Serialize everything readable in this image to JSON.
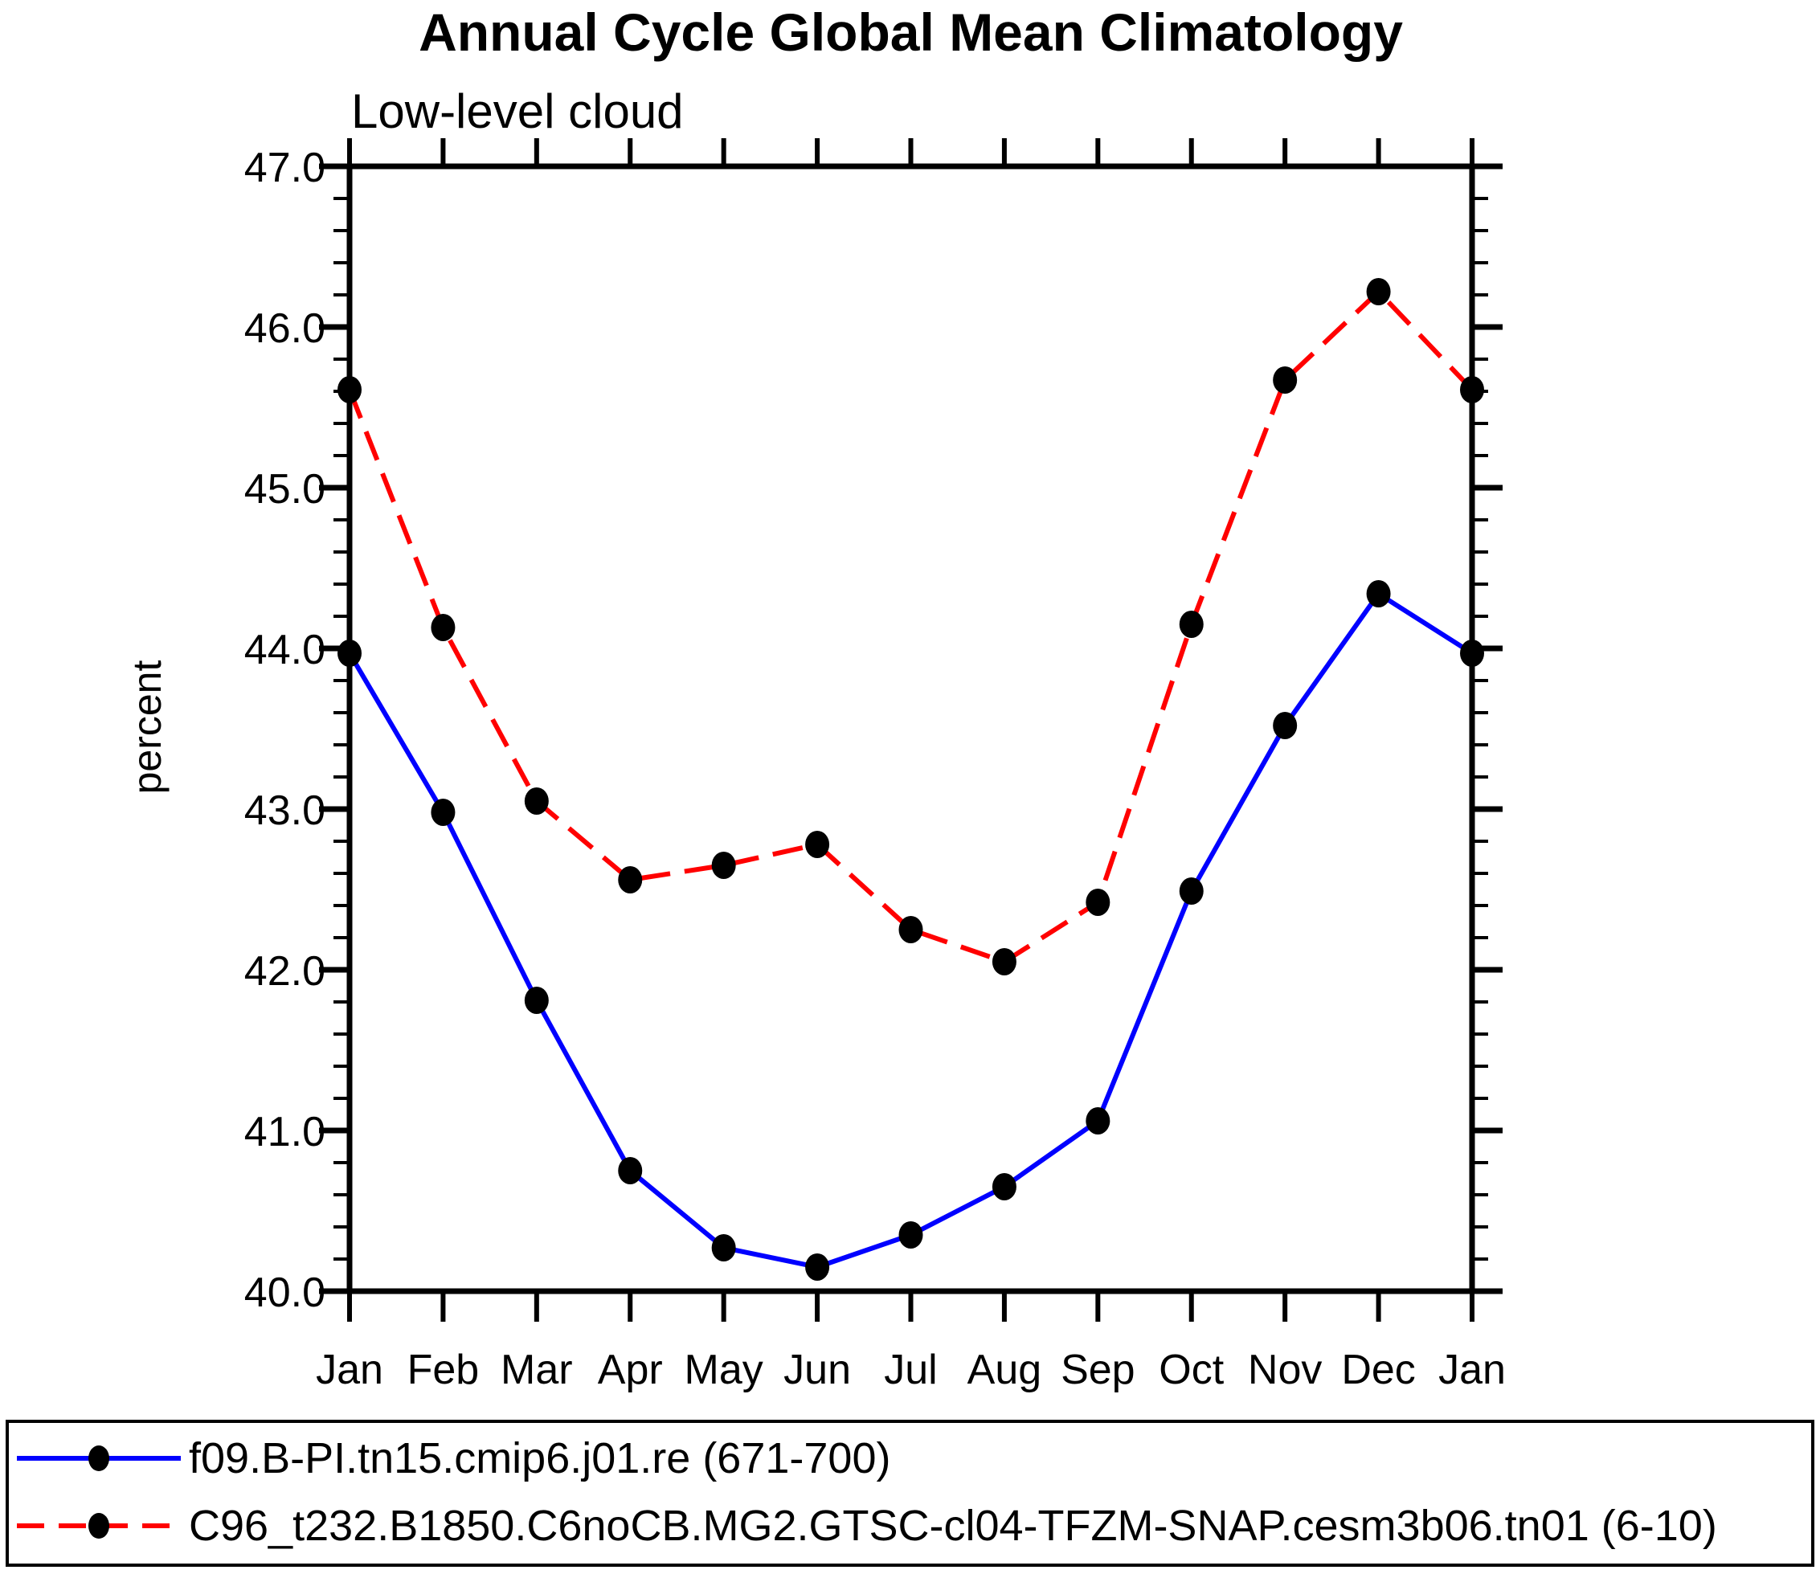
{
  "title": "Annual Cycle Global Mean Climatology",
  "subtitle": "Low-level cloud",
  "ylabel": "percent",
  "colors": {
    "series1": "#0000ff",
    "series2": "#ff0000",
    "marker": "#000000",
    "axis": "#000000",
    "background": "#ffffff"
  },
  "legend": {
    "entries": [
      "f09.B-PI.tn15.cmip6.j01.re (671-700)",
      "C96_t232.B1850.C6noCB.MG2.GTSC-cl04-TFZM-SNAP.cesm3b06.tn01 (6-10)"
    ]
  },
  "chart_data": {
    "type": "line",
    "title": "Annual Cycle Global Mean Climatology",
    "subtitle": "Low-level cloud",
    "xlabel": "",
    "ylabel": "percent",
    "x_categories": [
      "Jan",
      "Feb",
      "Mar",
      "Apr",
      "May",
      "Jun",
      "Jul",
      "Aug",
      "Sep",
      "Oct",
      "Nov",
      "Dec",
      "Jan"
    ],
    "ylim": [
      40.0,
      47.0
    ],
    "y_major_step": 1.0,
    "y_minor_step": 0.2,
    "y_tick_labels": [
      "47.0",
      "46.0",
      "45.0",
      "44.0",
      "43.0",
      "42.0",
      "41.0",
      "40.0"
    ],
    "grid": false,
    "legend_position": "bottom-box",
    "series": [
      {
        "name": "f09.B-PI.tn15.cmip6.j01.re (671-700)",
        "color": "#0000ff",
        "line_style": "solid",
        "marker": "filled-circle",
        "marker_color": "#000000",
        "values": [
          43.97,
          42.98,
          41.81,
          40.75,
          40.27,
          40.15,
          40.35,
          40.65,
          41.06,
          42.49,
          43.52,
          44.34,
          43.97
        ]
      },
      {
        "name": "C96_t232.B1850.C6noCB.MG2.GTSC-cl04-TFZM-SNAP.cesm3b06.tn01 (6-10)",
        "color": "#ff0000",
        "line_style": "dashed",
        "marker": "filled-circle",
        "marker_color": "#000000",
        "values": [
          45.61,
          44.13,
          43.05,
          42.56,
          42.65,
          42.78,
          42.25,
          42.05,
          42.42,
          44.15,
          45.67,
          46.22,
          45.61
        ]
      }
    ]
  }
}
